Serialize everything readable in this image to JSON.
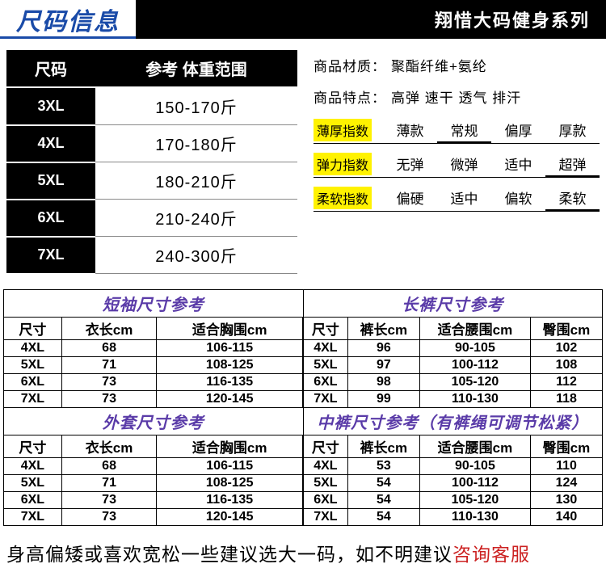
{
  "header": {
    "title_left": "尺码信息",
    "title_right": "翔惜大码健身系列",
    "left_color": "#1a4ba8",
    "right_bg": "#000000"
  },
  "weight_table": {
    "headers": [
      "尺码",
      "参考 体重范围"
    ],
    "rows": [
      {
        "size": "3XL",
        "range": "150-170斤"
      },
      {
        "size": "4XL",
        "range": "170-180斤"
      },
      {
        "size": "5XL",
        "range": "180-210斤"
      },
      {
        "size": "6XL",
        "range": "210-240斤"
      },
      {
        "size": "7XL",
        "range": "240-300斤"
      }
    ]
  },
  "props": {
    "material_label": "商品材质：",
    "material_value": "聚酯纤维+氨纶",
    "feature_label": "商品特点：",
    "feature_value": "高弹 速干 透气 排汗",
    "indices": [
      {
        "tag": "薄厚指数",
        "opts": [
          "薄款",
          "常规",
          "偏厚",
          "厚款"
        ],
        "sel": 1
      },
      {
        "tag": "弹力指数",
        "opts": [
          "无弹",
          "微弹",
          "适中",
          "超弹"
        ],
        "sel": 3
      },
      {
        "tag": "柔软指数",
        "opts": [
          "偏硬",
          "适中",
          "偏软",
          "柔软"
        ],
        "sel": 3
      }
    ],
    "tag_bg": "#fff200"
  },
  "section1": {
    "title_left": "短袖尺寸参考",
    "title_right": "长裤尺寸参考",
    "title_color": "#5a3ba8",
    "left": {
      "headers": [
        "尺寸",
        "衣长cm",
        "适合胸围cm"
      ],
      "rows": [
        [
          "4XL",
          "68",
          "106-115"
        ],
        [
          "5XL",
          "71",
          "108-125"
        ],
        [
          "6XL",
          "73",
          "116-135"
        ],
        [
          "7XL",
          "73",
          "120-145"
        ]
      ]
    },
    "right": {
      "headers": [
        "尺寸",
        "裤长cm",
        "适合腰围cm",
        "臀围cm"
      ],
      "rows": [
        [
          "4XL",
          "96",
          "90-105",
          "102"
        ],
        [
          "5XL",
          "97",
          "100-112",
          "108"
        ],
        [
          "6XL",
          "98",
          "105-120",
          "112"
        ],
        [
          "7XL",
          "99",
          "110-130",
          "118"
        ]
      ]
    }
  },
  "section2": {
    "title_left": "外套尺寸参考",
    "title_right": "中裤尺寸参考（有裤绳可调节松紧）",
    "left": {
      "headers": [
        "尺寸",
        "衣长cm",
        "适合胸围cm"
      ],
      "rows": [
        [
          "4XL",
          "68",
          "106-115"
        ],
        [
          "5XL",
          "71",
          "108-125"
        ],
        [
          "6XL",
          "73",
          "116-135"
        ],
        [
          "7XL",
          "73",
          "120-145"
        ]
      ]
    },
    "right": {
      "headers": [
        "尺寸",
        "裤长cm",
        "适合腰围cm",
        "臀围cm"
      ],
      "rows": [
        [
          "4XL",
          "53",
          "90-105",
          "110"
        ],
        [
          "5XL",
          "54",
          "100-112",
          "124"
        ],
        [
          "6XL",
          "54",
          "105-120",
          "130"
        ],
        [
          "7XL",
          "54",
          "110-130",
          "140"
        ]
      ]
    }
  },
  "footer": {
    "text_before": "身高偏矮或喜欢宽松一些建议选大一码，如不明建议",
    "text_red": "咨询客服",
    "red_color": "#cc2222"
  }
}
